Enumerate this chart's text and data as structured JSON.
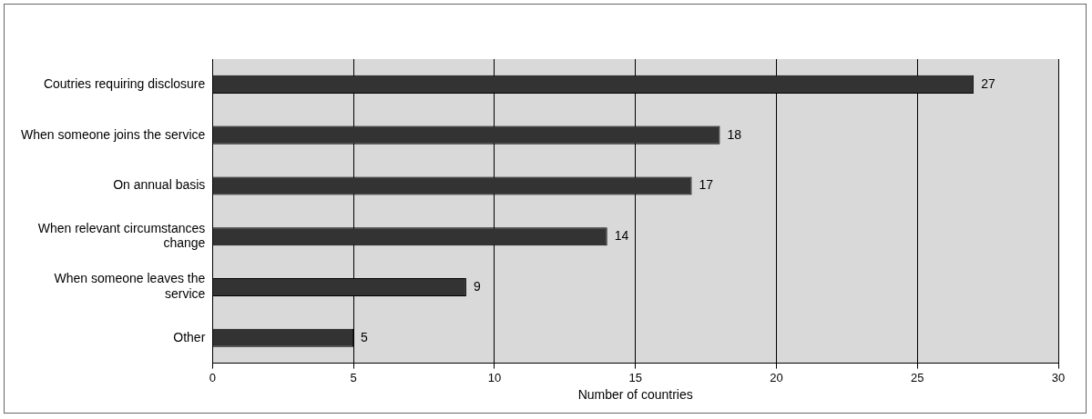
{
  "chart_data": {
    "type": "bar",
    "orientation": "horizontal",
    "xlabel": "Number of countries",
    "categories": [
      "Coutries requiring disclosure",
      "When someone joins the service",
      "On annual basis",
      "When relevant circumstances change",
      "When someone leaves the service",
      "Other"
    ],
    "values": [
      27,
      18,
      17,
      14,
      9,
      5
    ],
    "color": "#333333",
    "xlim": [
      0,
      30
    ],
    "xticks": [
      0,
      5,
      10,
      15,
      20,
      25,
      30
    ],
    "grid": "x",
    "legend": false,
    "data_labels": true
  }
}
